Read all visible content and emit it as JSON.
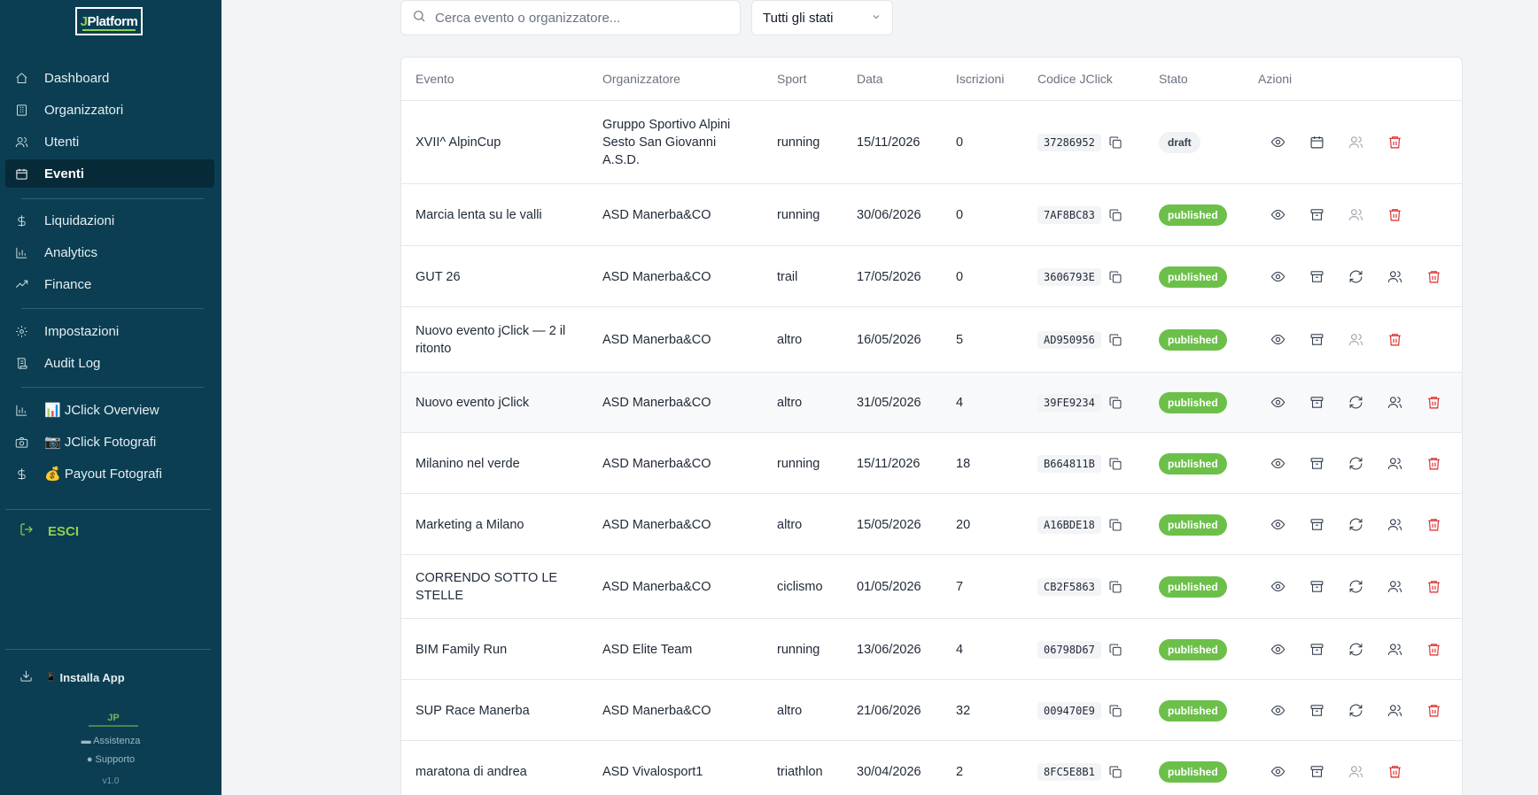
{
  "sidebar": {
    "logo": {
      "prefix": "J",
      "name": "Platform"
    },
    "items": [
      {
        "label": "Dashboard",
        "icon": "home-icon"
      },
      {
        "label": "Organizzatori",
        "icon": "building-icon"
      },
      {
        "label": "Utenti",
        "icon": "users-icon"
      },
      {
        "label": "Eventi",
        "icon": "calendar-icon",
        "active": true
      },
      {
        "label": "Liquidazioni",
        "icon": "dollar-icon"
      },
      {
        "label": "Analytics",
        "icon": "bar-chart-icon"
      },
      {
        "label": "Finance",
        "icon": "trend-icon"
      },
      {
        "label": "Impostazioni",
        "icon": "gear-icon"
      },
      {
        "label": "Audit Log",
        "icon": "scroll-icon"
      },
      {
        "label": "📊 JClick Overview",
        "icon": "bar-chart-icon"
      },
      {
        "label": "📷 JClick Fotografi",
        "icon": "camera-icon"
      },
      {
        "label": "💰 Payout Fotografi",
        "icon": "dollar-icon"
      }
    ],
    "logout_label": "ESCI",
    "install_label": "Installa App",
    "footer_logo": "JP",
    "assistenza_label": "Assistenza",
    "supporto_label": "Supporto",
    "version": "v1.0"
  },
  "filters": {
    "search_placeholder": "Cerca evento o organizzatore...",
    "status_value": "Tutti gli stati"
  },
  "table": {
    "headers": {
      "evento": "Evento",
      "organizzatore": "Organizzatore",
      "sport": "Sport",
      "data": "Data",
      "iscrizioni": "Iscrizioni",
      "codice": "Codice JClick",
      "stato": "Stato",
      "azioni": "Azioni"
    },
    "rows": [
      {
        "evento": "XVII^ AlpinCup",
        "organizzatore": "Gruppo Sportivo Alpini Sesto San Giovanni A.S.D.",
        "sport": "running",
        "data": "15/11/2026",
        "iscrizioni": "0",
        "codice": "37286952",
        "stato": "draft",
        "actions": "draft"
      },
      {
        "evento": "Marcia lenta su le valli",
        "organizzatore": "ASD Manerba&CO",
        "sport": "running",
        "data": "30/06/2026",
        "iscrizioni": "0",
        "codice": "7AF8BC83",
        "stato": "published",
        "actions": "archive-no-sync"
      },
      {
        "evento": "GUT 26",
        "organizzatore": "ASD Manerba&CO",
        "sport": "trail",
        "data": "17/05/2026",
        "iscrizioni": "0",
        "codice": "3606793E",
        "stato": "published",
        "actions": "full"
      },
      {
        "evento": "Nuovo evento jClick — 2 il ritonto",
        "organizzatore": "ASD Manerba&CO",
        "sport": "altro",
        "data": "16/05/2026",
        "iscrizioni": "5",
        "codice": "AD950956",
        "stato": "published",
        "actions": "archive-no-sync"
      },
      {
        "evento": "Nuovo evento jClick",
        "organizzatore": "ASD Manerba&CO",
        "sport": "altro",
        "data": "31/05/2026",
        "iscrizioni": "4",
        "codice": "39FE9234",
        "stato": "published",
        "actions": "full",
        "highlight": true
      },
      {
        "evento": "Milanino nel verde",
        "organizzatore": "ASD Manerba&CO",
        "sport": "running",
        "data": "15/11/2026",
        "iscrizioni": "18",
        "codice": "B664811B",
        "stato": "published",
        "actions": "full"
      },
      {
        "evento": "Marketing a Milano",
        "organizzatore": "ASD Manerba&CO",
        "sport": "altro",
        "data": "15/05/2026",
        "iscrizioni": "20",
        "codice": "A16BDE18",
        "stato": "published",
        "actions": "full"
      },
      {
        "evento": "CORRENDO SOTTO LE STELLE",
        "organizzatore": "ASD Manerba&CO",
        "sport": "ciclismo",
        "data": "01/05/2026",
        "iscrizioni": "7",
        "codice": "CB2F5863",
        "stato": "published",
        "actions": "full"
      },
      {
        "evento": "BIM Family Run",
        "organizzatore": "ASD Elite Team",
        "sport": "running",
        "data": "13/06/2026",
        "iscrizioni": "4",
        "codice": "06798D67",
        "stato": "published",
        "actions": "full"
      },
      {
        "evento": "SUP Race Manerba",
        "organizzatore": "ASD Manerba&CO",
        "sport": "altro",
        "data": "21/06/2026",
        "iscrizioni": "32",
        "codice": "009470E9",
        "stato": "published",
        "actions": "full"
      },
      {
        "evento": "maratona di andrea",
        "organizzatore": "ASD Vivalosport1",
        "sport": "triathlon",
        "data": "30/04/2026",
        "iscrizioni": "2",
        "codice": "8FC5E8B1",
        "stato": "published",
        "actions": "archive-no-sync"
      }
    ]
  },
  "colors": {
    "sidebar_bg": "#0b3e52",
    "accent_green": "#8fd14f",
    "published_badge": "#6cc04a",
    "delete_red": "#dc2626"
  }
}
